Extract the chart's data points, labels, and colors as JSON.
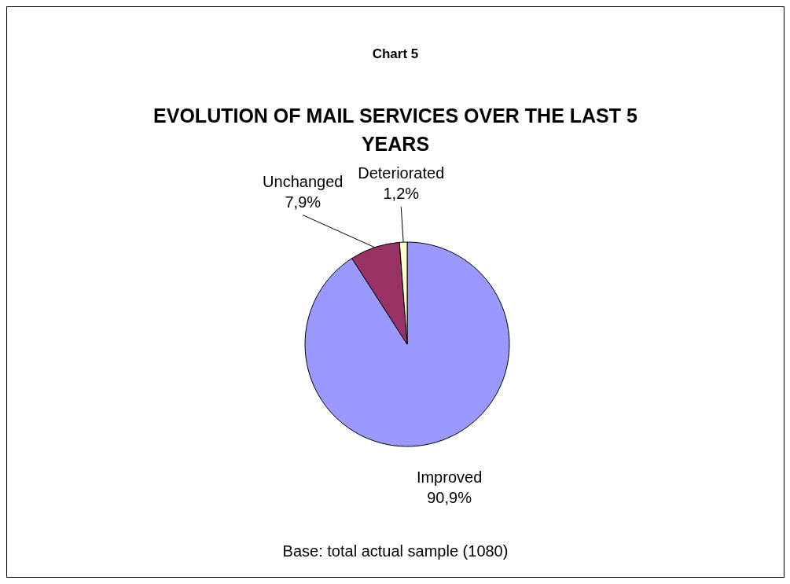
{
  "chart_data": {
    "type": "pie",
    "title": "Chart 5",
    "subtitle": "EVOLUTION OF MAIL SERVICES OVER THE LAST 5 YEARS",
    "categories": [
      "Improved",
      "Unchanged",
      "Deteriorated"
    ],
    "values": [
      90.9,
      7.9,
      1.2
    ],
    "value_labels": [
      "90,9%",
      "7,9%",
      "1,2%"
    ],
    "colors": [
      "#9999ff",
      "#993366",
      "#ffffcc"
    ],
    "annotations": [
      "Base: total actual sample (1080)"
    ]
  }
}
